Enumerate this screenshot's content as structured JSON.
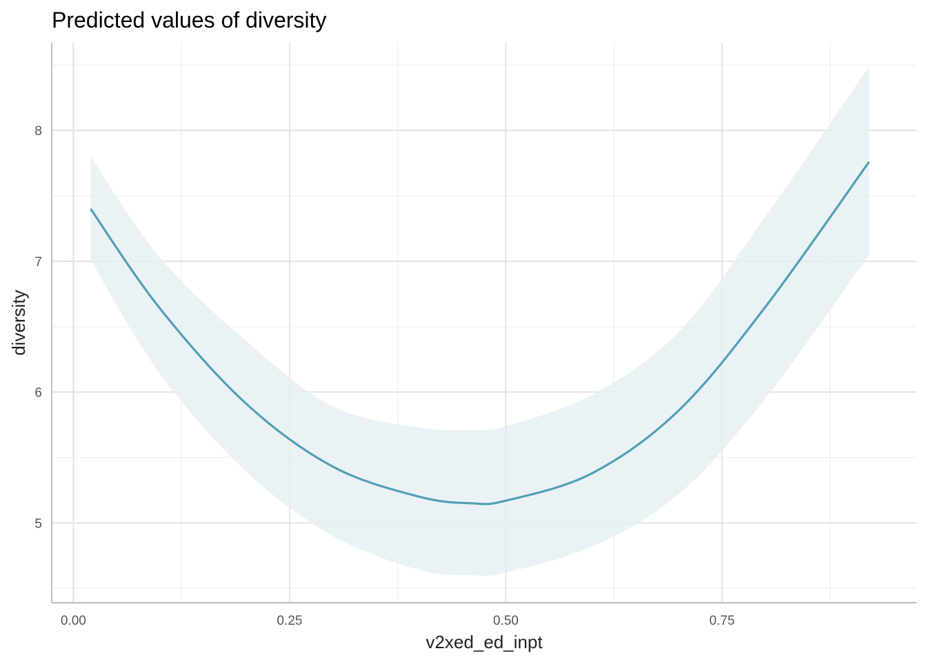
{
  "chart_data": {
    "type": "line",
    "title": "Predicted values of diversity",
    "xlabel": "v2xed_ed_inpt",
    "ylabel": "diversity",
    "xlim": [
      -0.025,
      0.975
    ],
    "ylim": [
      4.39,
      8.67
    ],
    "grid": true,
    "x_ticks": [
      0.0,
      0.25,
      0.5,
      0.75
    ],
    "x_tick_labels": [
      "0.00",
      "0.25",
      "0.50",
      "0.75"
    ],
    "y_ticks": [
      5,
      6,
      7,
      8
    ],
    "y_tick_labels": [
      "5",
      "6",
      "7",
      "8"
    ],
    "x_minor_ticks": [
      0.125,
      0.375,
      0.625,
      0.875
    ],
    "y_minor_ticks": [
      4.5,
      5.5,
      6.5,
      7.5,
      8.5
    ],
    "series": [
      {
        "x": [
          0.02,
          0.1,
          0.2,
          0.3,
          0.4,
          0.46,
          0.5,
          0.6,
          0.7,
          0.8,
          0.92
        ],
        "values": [
          7.4,
          6.64,
          5.91,
          5.43,
          5.2,
          5.15,
          5.17,
          5.38,
          5.86,
          6.65,
          7.76
        ],
        "lower": [
          7.01,
          6.14,
          5.39,
          4.9,
          4.64,
          4.6,
          4.62,
          4.82,
          5.22,
          5.95,
          7.05
        ],
        "upper": [
          7.8,
          7.03,
          6.39,
          5.89,
          5.73,
          5.71,
          5.74,
          5.98,
          6.46,
          7.34,
          8.49
        ],
        "color": "#519fb7",
        "band_color": "#e5eff4"
      }
    ]
  }
}
